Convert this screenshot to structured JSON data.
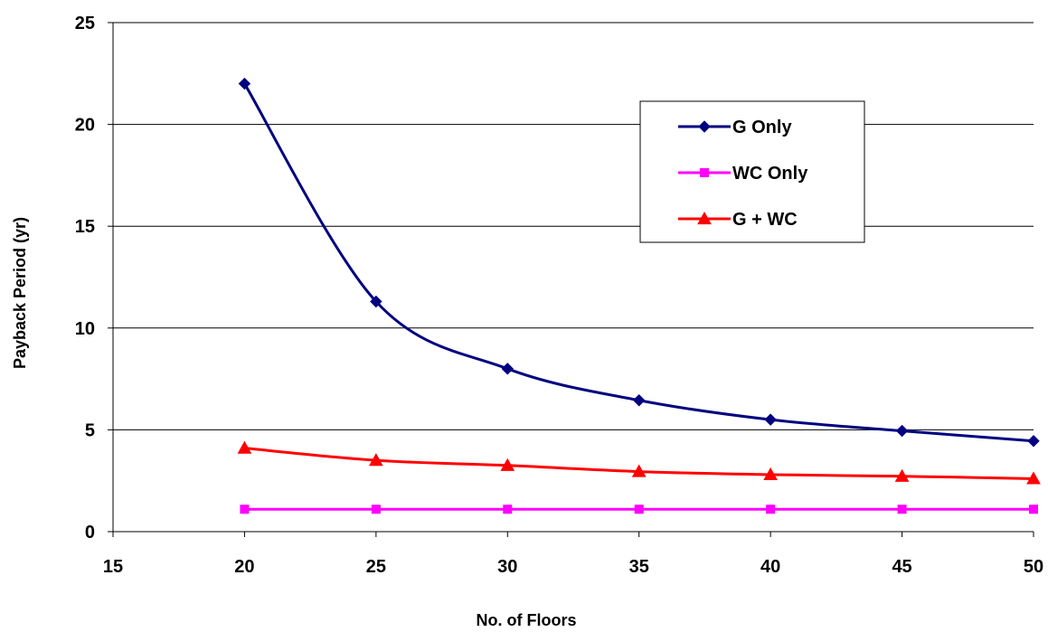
{
  "chart_data": {
    "type": "line",
    "title": "",
    "xlabel": "No. of Floors",
    "ylabel": "Payback Period (yr)",
    "xlim": [
      15,
      50
    ],
    "ylim": [
      0,
      25
    ],
    "x_ticks": [
      15,
      20,
      25,
      30,
      35,
      40,
      45,
      50
    ],
    "y_ticks": [
      0,
      5,
      10,
      15,
      20,
      25
    ],
    "grid": "horizontal",
    "legend_position": "upper-right inside plot",
    "x": [
      20,
      25,
      30,
      35,
      40,
      45,
      50
    ],
    "series": [
      {
        "name": "G Only",
        "color": "#000080",
        "marker": "diamond",
        "values": [
          22.0,
          11.3,
          8.0,
          6.45,
          5.5,
          4.95,
          4.45
        ]
      },
      {
        "name": "WC Only",
        "color": "#FF00FF",
        "marker": "square",
        "values": [
          1.1,
          1.1,
          1.1,
          1.1,
          1.1,
          1.1,
          1.1
        ]
      },
      {
        "name": "G + WC",
        "color": "#FF0000",
        "marker": "triangle",
        "values": [
          4.1,
          3.5,
          3.25,
          2.95,
          2.8,
          2.72,
          2.6
        ]
      }
    ]
  }
}
